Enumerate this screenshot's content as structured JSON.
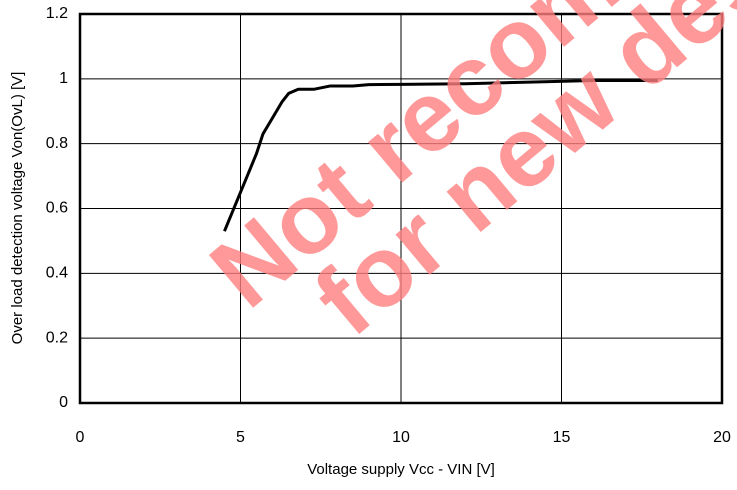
{
  "chart_data": {
    "type": "line",
    "x_label": "Voltage supply  Vcc - VIN [V]",
    "y_label": "Over load detection voltage  Von(OvL) [V]",
    "annotations": [
      "Not recommended",
      "for new designs"
    ],
    "x": [
      4.5,
      5.0,
      5.5,
      5.7,
      6.0,
      6.3,
      6.5,
      6.8,
      7.3,
      7.8,
      8.5,
      9.0,
      10.0,
      12.0,
      14.0,
      16.0,
      18.0
    ],
    "series": [
      {
        "color": "#000000",
        "values": [
          0.53,
          0.65,
          0.77,
          0.83,
          0.88,
          0.93,
          0.955,
          0.968,
          0.968,
          0.978,
          0.978,
          0.982,
          0.983,
          0.985,
          0.99,
          0.995,
          0.995
        ]
      }
    ],
    "xlim": [
      0,
      20
    ],
    "xticks": [
      0,
      5,
      10,
      15,
      20
    ],
    "ylim": [
      0,
      1.2
    ],
    "yticks": [
      0,
      0.2,
      0.4,
      0.6,
      0.8,
      1,
      1.2
    ],
    "grid": true
  }
}
